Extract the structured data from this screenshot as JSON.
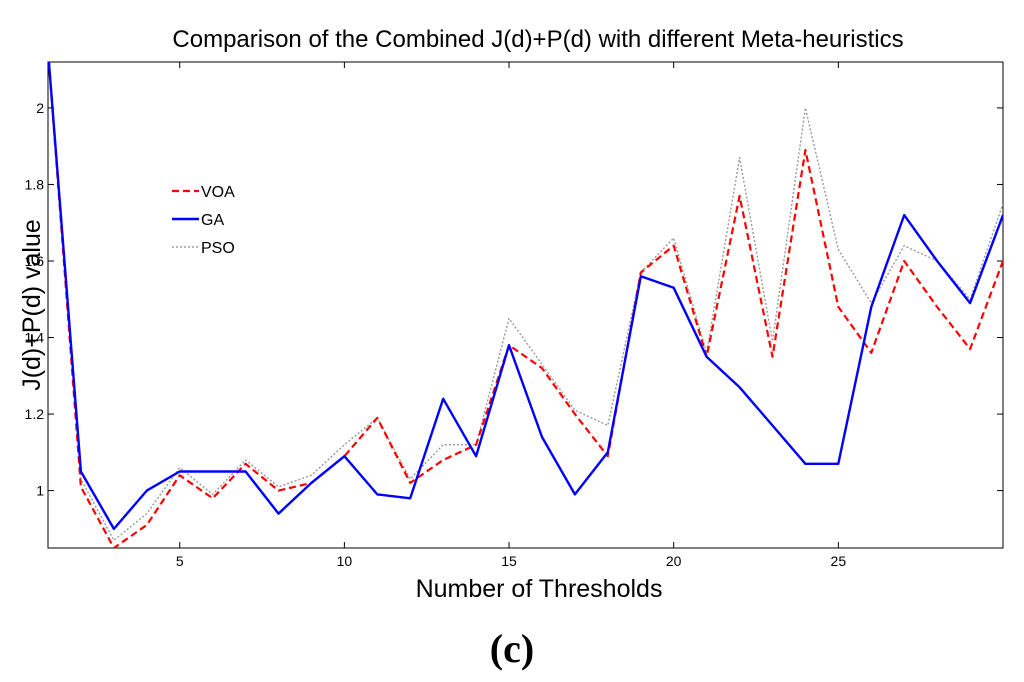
{
  "chart_data": {
    "type": "line",
    "title": "Comparison of the Combined J(d)+P(d) with different Meta-heuristics",
    "xlabel": "Number of Thresholds",
    "ylabel": "J(d)+P(d) value",
    "xlim": [
      1,
      30
    ],
    "ylim": [
      0.85,
      2.12
    ],
    "xticks": [
      5,
      10,
      15,
      20,
      25
    ],
    "yticks": [
      1,
      1.2,
      1.4,
      1.6,
      1.8,
      2
    ],
    "grid": false,
    "legend_position": "upper-left",
    "x": [
      1,
      2,
      3,
      4,
      5,
      6,
      7,
      8,
      9,
      10,
      11,
      12,
      13,
      14,
      15,
      16,
      17,
      18,
      19,
      20,
      21,
      22,
      23,
      24,
      25,
      26,
      27,
      28,
      29,
      30
    ],
    "series": [
      {
        "name": "VOA",
        "color": "#ff0000",
        "style": "dashed",
        "values": [
          2.15,
          1.01,
          0.85,
          0.91,
          1.04,
          0.98,
          1.07,
          1.0,
          1.02,
          1.09,
          1.19,
          1.02,
          1.08,
          1.12,
          1.38,
          1.32,
          1.2,
          1.09,
          1.57,
          1.64,
          1.35,
          1.77,
          1.35,
          1.89,
          1.48,
          1.36,
          1.6,
          1.48,
          1.37,
          1.6
        ]
      },
      {
        "name": "GA",
        "color": "#0000ff",
        "style": "solid",
        "values": [
          2.15,
          1.05,
          0.9,
          1.0,
          1.05,
          1.05,
          1.05,
          0.94,
          1.02,
          1.09,
          0.99,
          0.98,
          1.24,
          1.09,
          1.38,
          1.14,
          0.99,
          1.1,
          1.56,
          1.53,
          1.35,
          1.27,
          1.17,
          1.07,
          1.07,
          1.48,
          1.72,
          1.6,
          1.49,
          1.72
        ]
      },
      {
        "name": "PSO",
        "color": "#999999",
        "style": "dotted",
        "values": [
          2.15,
          1.03,
          0.87,
          0.94,
          1.06,
          0.99,
          1.08,
          1.01,
          1.04,
          1.12,
          1.19,
          1.03,
          1.12,
          1.12,
          1.45,
          1.33,
          1.21,
          1.17,
          1.57,
          1.66,
          1.36,
          1.87,
          1.39,
          2.0,
          1.63,
          1.49,
          1.64,
          1.6,
          1.5,
          1.75
        ]
      }
    ]
  },
  "caption": "(c)"
}
